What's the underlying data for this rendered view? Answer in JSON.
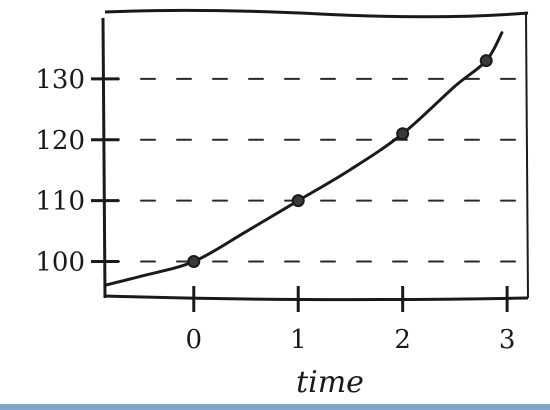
{
  "chart_data": {
    "type": "line",
    "title": "",
    "xlabel": "time",
    "ylabel": "",
    "x_ticks": [
      0,
      1,
      2,
      3
    ],
    "x_tick_labels": [
      "0",
      "1",
      "2",
      "3"
    ],
    "y_ticks": [
      100,
      110,
      120,
      130
    ],
    "y_tick_labels": [
      "100",
      "110",
      "120",
      "130"
    ],
    "xlim": [
      -0.85,
      3.2
    ],
    "ylim": [
      94,
      141
    ],
    "grid": true,
    "points": {
      "x": [
        0,
        1,
        2,
        2.8
      ],
      "y": [
        100,
        110,
        121,
        133
      ]
    },
    "curve": {
      "x": [
        -0.85,
        -0.5,
        0,
        0.5,
        1,
        1.5,
        2,
        2.5,
        2.8,
        2.95
      ],
      "y": [
        96.1,
        97.6,
        100,
        104.9,
        110,
        115.1,
        121,
        128.8,
        133,
        137.6
      ]
    },
    "colors": {
      "ink": "#1a1a1a",
      "grid": "#2a2a2a",
      "background": "#ffffff",
      "bottom_border": "#7fa8c8"
    }
  }
}
